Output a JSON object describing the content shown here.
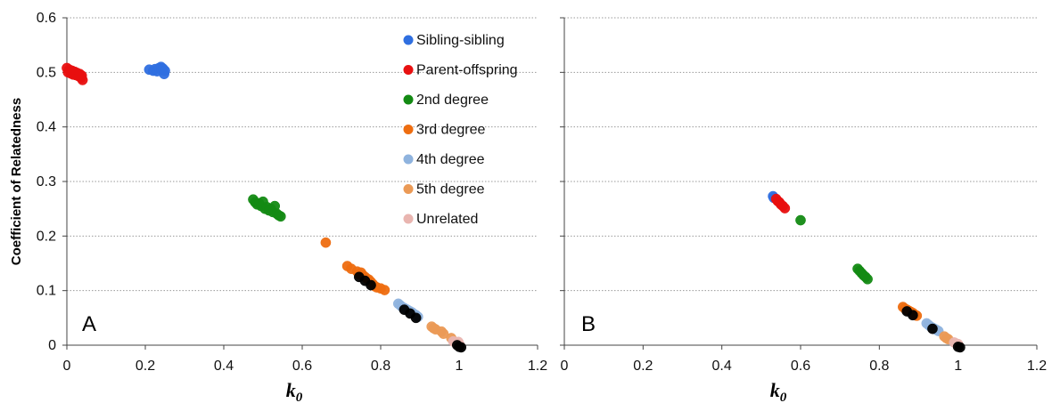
{
  "chart_data": [
    {
      "type": "scatter",
      "panel_label": "A",
      "xlabel_main": "k",
      "xlabel_sub": "0",
      "ylabel": "Coefficient of Relatedness",
      "xlim": [
        0,
        1.2
      ],
      "ylim": [
        0,
        0.6
      ],
      "xticks": [
        "0",
        "0.2",
        "0.4",
        "0.6",
        "0.8",
        "1",
        "1.2"
      ],
      "yticks": [
        "0",
        "0.1",
        "0.2",
        "0.3",
        "0.4",
        "0.5",
        "0.6"
      ],
      "grid": "horizontal dotted",
      "legend": "top-right",
      "series": [
        {
          "name": "Sibling-sibling",
          "color": "#2f6fe0",
          "points": [
            [
              0.21,
              0.505
            ],
            [
              0.22,
              0.503
            ],
            [
              0.225,
              0.506
            ],
            [
              0.23,
              0.502
            ],
            [
              0.235,
              0.508
            ],
            [
              0.24,
              0.51
            ],
            [
              0.242,
              0.504
            ],
            [
              0.245,
              0.507
            ],
            [
              0.248,
              0.497
            ],
            [
              0.25,
              0.503
            ]
          ]
        },
        {
          "name": "Parent-offspring",
          "color": "#e81010",
          "points": [
            [
              0.0,
              0.508
            ],
            [
              0.003,
              0.5
            ],
            [
              0.006,
              0.505
            ],
            [
              0.01,
              0.498
            ],
            [
              0.013,
              0.503
            ],
            [
              0.016,
              0.496
            ],
            [
              0.02,
              0.501
            ],
            [
              0.023,
              0.495
            ],
            [
              0.026,
              0.499
            ],
            [
              0.03,
              0.493
            ],
            [
              0.033,
              0.497
            ],
            [
              0.036,
              0.49
            ],
            [
              0.04,
              0.486
            ],
            [
              0.038,
              0.494
            ]
          ]
        },
        {
          "name": "2nd degree",
          "color": "#138a13",
          "points": [
            [
              0.475,
              0.267
            ],
            [
              0.48,
              0.262
            ],
            [
              0.485,
              0.258
            ],
            [
              0.49,
              0.26
            ],
            [
              0.495,
              0.255
            ],
            [
              0.5,
              0.263
            ],
            [
              0.505,
              0.25
            ],
            [
              0.51,
              0.253
            ],
            [
              0.515,
              0.247
            ],
            [
              0.52,
              0.25
            ],
            [
              0.525,
              0.244
            ],
            [
              0.53,
              0.255
            ],
            [
              0.535,
              0.241
            ],
            [
              0.54,
              0.238
            ],
            [
              0.545,
              0.236
            ]
          ]
        },
        {
          "name": "3rd degree",
          "color": "#ee6d10",
          "points": [
            [
              0.66,
              0.188
            ],
            [
              0.715,
              0.145
            ],
            [
              0.725,
              0.14
            ],
            [
              0.74,
              0.135
            ],
            [
              0.745,
              0.13
            ],
            [
              0.75,
              0.133
            ],
            [
              0.755,
              0.128
            ],
            [
              0.76,
              0.125
            ],
            [
              0.765,
              0.122
            ],
            [
              0.77,
              0.12
            ],
            [
              0.775,
              0.116
            ],
            [
              0.78,
              0.112
            ],
            [
              0.785,
              0.108
            ],
            [
              0.79,
              0.106
            ],
            [
              0.8,
              0.104
            ],
            [
              0.81,
              0.101
            ]
          ]
        },
        {
          "name": "4th degree",
          "color": "#8fb3de",
          "points": [
            [
              0.845,
              0.076
            ],
            [
              0.85,
              0.073
            ],
            [
              0.855,
              0.07
            ],
            [
              0.86,
              0.068
            ],
            [
              0.865,
              0.066
            ],
            [
              0.87,
              0.064
            ],
            [
              0.875,
              0.062
            ],
            [
              0.88,
              0.06
            ],
            [
              0.885,
              0.057
            ],
            [
              0.89,
              0.055
            ],
            [
              0.895,
              0.052
            ]
          ]
        },
        {
          "name": "5th degree",
          "color": "#eb9a56",
          "points": [
            [
              0.93,
              0.034
            ],
            [
              0.935,
              0.031
            ],
            [
              0.94,
              0.029
            ],
            [
              0.955,
              0.025
            ],
            [
              0.96,
              0.021
            ],
            [
              0.98,
              0.013
            ]
          ]
        },
        {
          "name": "Unrelated",
          "color": "#e9b5b0",
          "points": [
            [
              0.985,
              0.007
            ],
            [
              0.99,
              0.005
            ],
            [
              0.995,
              0.003
            ],
            [
              1.0,
              0.001
            ],
            [
              0.998,
              0.006
            ],
            [
              1.002,
              0.0
            ]
          ]
        },
        {
          "color": "#000000",
          "points": [
            [
              0.745,
              0.125
            ],
            [
              0.76,
              0.118
            ],
            [
              0.775,
              0.11
            ],
            [
              0.86,
              0.065
            ],
            [
              0.875,
              0.058
            ],
            [
              0.89,
              0.05
            ],
            [
              0.995,
              0.0
            ],
            [
              1.0,
              -0.003
            ],
            [
              1.005,
              -0.004
            ]
          ]
        }
      ]
    },
    {
      "type": "scatter",
      "panel_label": "B",
      "xlabel_main": "k",
      "xlabel_sub": "0",
      "xlim": [
        0,
        1.2
      ],
      "ylim": [
        0,
        0.6
      ],
      "xticks": [
        "0",
        "0.2",
        "0.4",
        "0.6",
        "0.8",
        "1",
        "1.2"
      ],
      "grid": "horizontal dotted",
      "series": [
        {
          "name": "Sibling-sibling",
          "color": "#2f6fe0",
          "points": [
            [
              0.53,
              0.273
            ],
            [
              0.532,
              0.27
            ]
          ]
        },
        {
          "name": "Parent-offspring",
          "color": "#e81010",
          "points": [
            [
              0.538,
              0.268
            ],
            [
              0.542,
              0.264
            ],
            [
              0.546,
              0.262
            ],
            [
              0.55,
              0.258
            ],
            [
              0.555,
              0.255
            ],
            [
              0.56,
              0.251
            ]
          ]
        },
        {
          "name": "2nd degree",
          "color": "#138a13",
          "points": [
            [
              0.6,
              0.229
            ],
            [
              0.745,
              0.14
            ],
            [
              0.75,
              0.136
            ],
            [
              0.755,
              0.132
            ],
            [
              0.76,
              0.128
            ],
            [
              0.765,
              0.125
            ],
            [
              0.77,
              0.121
            ]
          ]
        },
        {
          "name": "3rd degree",
          "color": "#ee6d10",
          "points": [
            [
              0.86,
              0.07
            ],
            [
              0.865,
              0.067
            ],
            [
              0.87,
              0.065
            ],
            [
              0.875,
              0.063
            ],
            [
              0.88,
              0.061
            ],
            [
              0.885,
              0.059
            ],
            [
              0.89,
              0.056
            ],
            [
              0.895,
              0.054
            ]
          ]
        },
        {
          "name": "4th degree",
          "color": "#8fb3de",
          "points": [
            [
              0.92,
              0.04
            ],
            [
              0.925,
              0.037
            ],
            [
              0.93,
              0.034
            ],
            [
              0.935,
              0.032
            ],
            [
              0.94,
              0.03
            ],
            [
              0.945,
              0.028
            ],
            [
              0.95,
              0.026
            ]
          ]
        },
        {
          "name": "5th degree",
          "color": "#eb9a56",
          "points": [
            [
              0.965,
              0.016
            ],
            [
              0.97,
              0.013
            ],
            [
              0.975,
              0.011
            ]
          ]
        },
        {
          "name": "Unrelated",
          "color": "#e9b5b0",
          "points": [
            [
              0.99,
              0.005
            ],
            [
              0.995,
              0.003
            ],
            [
              1.0,
              0.002
            ]
          ]
        },
        {
          "color": "#000000",
          "points": [
            [
              0.87,
              0.062
            ],
            [
              0.885,
              0.055
            ],
            [
              0.935,
              0.03
            ],
            [
              1.0,
              -0.003
            ],
            [
              1.005,
              -0.004
            ]
          ]
        }
      ]
    }
  ]
}
